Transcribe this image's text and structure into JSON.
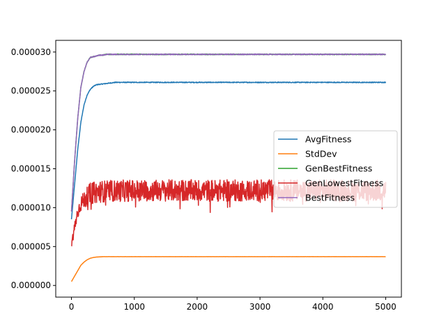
{
  "chart_data": {
    "type": "line",
    "title": "",
    "xlabel": "",
    "ylabel": "",
    "xlim": [
      -250,
      5250
    ],
    "ylim": [
      -1.5e-06,
      3.15e-05
    ],
    "xticks": [
      0,
      1000,
      2000,
      3000,
      4000,
      5000
    ],
    "xtick_labels": [
      "0",
      "1000",
      "2000",
      "3000",
      "4000",
      "5000"
    ],
    "yticks": [
      0,
      5e-06,
      1e-05,
      1.5e-05,
      2e-05,
      2.5e-05,
      3e-05
    ],
    "ytick_labels": [
      "0.000000",
      "0.000005",
      "0.000010",
      "0.000015",
      "0.000020",
      "0.000025",
      "0.000030"
    ],
    "grid": false,
    "legend_position": "center-right",
    "n_points": 5000,
    "series": [
      {
        "name": "AvgFitness",
        "color": "#1f77b4",
        "x": [
          0,
          50,
          100,
          150,
          200,
          250,
          300,
          350,
          400,
          500,
          600,
          700,
          800,
          1000,
          2000,
          3000,
          4000,
          5000
        ],
        "values": [
          8.5e-06,
          1.3e-05,
          1.75e-05,
          2.1e-05,
          2.32e-05,
          2.45e-05,
          2.52e-05,
          2.56e-05,
          2.58e-05,
          2.59e-05,
          2.6e-05,
          2.61e-05,
          2.61e-05,
          2.61e-05,
          2.61e-05,
          2.61e-05,
          2.61e-05,
          2.61e-05
        ]
      },
      {
        "name": "StdDev",
        "color": "#ff7f0e",
        "x": [
          0,
          50,
          100,
          150,
          200,
          250,
          300,
          350,
          400,
          500,
          600,
          700,
          1000,
          2000,
          3000,
          4000,
          5000
        ],
        "values": [
          5e-07,
          1.2e-06,
          1.9e-06,
          2.6e-06,
          3e-06,
          3.3e-06,
          3.5e-06,
          3.6e-06,
          3.65e-06,
          3.7e-06,
          3.7e-06,
          3.7e-06,
          3.7e-06,
          3.7e-06,
          3.7e-06,
          3.7e-06,
          3.7e-06
        ]
      },
      {
        "name": "GenBestFitness",
        "color": "#2ca02c",
        "x": [
          0,
          50,
          100,
          150,
          200,
          250,
          300,
          350,
          400,
          450,
          500,
          550,
          600,
          700,
          1000,
          2000,
          3000,
          4000,
          5000
        ],
        "values": [
          9.5e-06,
          1.6e-05,
          2.15e-05,
          2.55e-05,
          2.75e-05,
          2.87e-05,
          2.93e-05,
          2.94e-05,
          2.95e-05,
          2.96e-05,
          2.96e-05,
          2.97e-05,
          2.97e-05,
          2.97e-05,
          2.97e-05,
          2.97e-05,
          2.97e-05,
          2.97e-05,
          2.97e-05
        ]
      },
      {
        "name": "GenLowestFitness",
        "color": "#d62728",
        "x": [
          0,
          50,
          100,
          150,
          200,
          300,
          400,
          500,
          1000,
          2000,
          3000,
          4000,
          5000
        ],
        "values": [
          5.2e-06,
          7.5e-06,
          9.5e-06,
          1.05e-05,
          1.1e-05,
          1.18e-05,
          1.2e-05,
          1.21e-05,
          1.22e-05,
          1.22e-05,
          1.22e-05,
          1.22e-05,
          1.22e-05
        ],
        "noise_amplitude": 1.4e-06
      },
      {
        "name": "BestFitness",
        "color": "#9467bd",
        "x": [
          0,
          50,
          100,
          150,
          200,
          250,
          300,
          350,
          400,
          450,
          500,
          550,
          600,
          700,
          1000,
          2000,
          3000,
          4000,
          5000
        ],
        "values": [
          9.5e-06,
          1.6e-05,
          2.15e-05,
          2.55e-05,
          2.75e-05,
          2.87e-05,
          2.93e-05,
          2.94e-05,
          2.95e-05,
          2.96e-05,
          2.96e-05,
          2.97e-05,
          2.97e-05,
          2.97e-05,
          2.97e-05,
          2.97e-05,
          2.97e-05,
          2.97e-05,
          2.97e-05
        ]
      }
    ]
  }
}
